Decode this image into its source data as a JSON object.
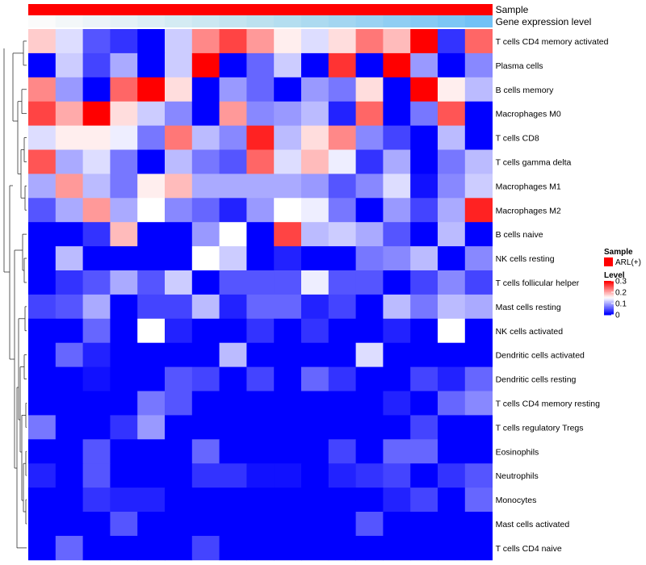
{
  "chart_data": {
    "type": "heatmap",
    "annotation_tracks": [
      "Sample",
      "Gene expression level"
    ],
    "sample_colors": [
      "#ff0000"
    ],
    "expression_colors": [
      "#fbfbfb",
      "#f3f7f9",
      "#ecf4f8",
      "#e4f1f6",
      "#dceef5",
      "#d4ebf3",
      "#cce8f2",
      "#c4e4f0",
      "#bce1ef",
      "#b4def0",
      "#acdaf0",
      "#a3d6f1",
      "#9ad2f2",
      "#90cef3",
      "#86caf4",
      "#7cc6f5",
      "#72c1f6",
      "#67bdf7"
    ],
    "rows": [
      "T cells CD4 memory activated",
      "Plasma cells",
      "B cells memory",
      "Macrophages M0",
      "T cells CD8",
      "T cells gamma delta",
      "Macrophages M1",
      "Macrophages M2",
      "B cells naive",
      "NK cells resting",
      "T cells follicular helper",
      "Mast cells resting",
      "NK cells activated",
      "Dendritic cells activated",
      "Dendritic cells resting",
      "T cells CD4 memory resting",
      "T cells regulatory  Tregs",
      "Eosinophils",
      "Neutrophils",
      "Monocytes",
      "Mast cells activated",
      "T cells CD4 naive"
    ],
    "values": [
      [
        0.18,
        0.13,
        0.05,
        0.03,
        0.0,
        0.12,
        0.22,
        0.26,
        0.21,
        0.16,
        0.13,
        0.17,
        0.23,
        0.19,
        0.3,
        0.03,
        0.24
      ],
      [
        0.0,
        0.12,
        0.04,
        0.1,
        0.0,
        0.12,
        0.3,
        0.0,
        0.06,
        0.12,
        0.0,
        0.27,
        0.0,
        0.3,
        0.09,
        0.0,
        0.08
      ],
      [
        0.22,
        0.09,
        0.0,
        0.24,
        0.3,
        0.17,
        0.0,
        0.09,
        0.06,
        0.0,
        0.09,
        0.07,
        0.17,
        0.0,
        0.3,
        0.16,
        0.11
      ],
      [
        0.26,
        0.2,
        0.3,
        0.17,
        0.12,
        0.08,
        0.0,
        0.21,
        0.08,
        0.09,
        0.11,
        0.02,
        0.24,
        0.0,
        0.07,
        0.25,
        0.0
      ],
      [
        0.13,
        0.16,
        0.16,
        0.14,
        0.07,
        0.23,
        0.11,
        0.08,
        0.28,
        0.11,
        0.17,
        0.22,
        0.08,
        0.04,
        0.0,
        0.11,
        0.0
      ],
      [
        0.25,
        0.1,
        0.13,
        0.07,
        0.0,
        0.11,
        0.07,
        0.05,
        0.24,
        0.13,
        0.19,
        0.14,
        0.03,
        0.1,
        0.0,
        0.07,
        0.11
      ],
      [
        0.1,
        0.21,
        0.11,
        0.07,
        0.16,
        0.19,
        0.1,
        0.1,
        0.1,
        0.1,
        0.09,
        0.05,
        0.08,
        0.13,
        0.01,
        0.08,
        0.12
      ],
      [
        0.05,
        0.1,
        0.21,
        0.1,
        0.15,
        0.08,
        0.06,
        0.02,
        0.09,
        0.15,
        0.14,
        0.07,
        0.0,
        0.09,
        0.04,
        0.1,
        0.28
      ],
      [
        0.0,
        0.0,
        0.03,
        0.19,
        0.0,
        0.0,
        0.09,
        0.15,
        0.0,
        0.26,
        0.11,
        0.12,
        0.1,
        0.05,
        0.0,
        0.11,
        0.0
      ],
      [
        0.0,
        0.11,
        0.0,
        0.0,
        0.0,
        0.0,
        0.15,
        0.12,
        0.0,
        0.02,
        0.0,
        0.0,
        0.07,
        0.08,
        0.11,
        0.0,
        0.08
      ],
      [
        0.0,
        0.03,
        0.05,
        0.1,
        0.05,
        0.12,
        0.0,
        0.05,
        0.05,
        0.05,
        0.14,
        0.05,
        0.05,
        0.0,
        0.04,
        0.08,
        0.04
      ],
      [
        0.04,
        0.05,
        0.1,
        0.0,
        0.04,
        0.04,
        0.11,
        0.02,
        0.06,
        0.06,
        0.02,
        0.04,
        0.0,
        0.11,
        0.07,
        0.11,
        0.1
      ],
      [
        0.0,
        0.0,
        0.06,
        0.0,
        0.15,
        0.02,
        0.0,
        0.0,
        0.03,
        0.0,
        0.03,
        0.0,
        0.0,
        0.02,
        0.0,
        0.15,
        0.0
      ],
      [
        0.0,
        0.06,
        0.02,
        0.0,
        0.0,
        0.0,
        0.0,
        0.11,
        0.0,
        0.0,
        0.0,
        0.0,
        0.13,
        0.0,
        0.0,
        0.0,
        0.0
      ],
      [
        0.0,
        0.0,
        0.01,
        0.0,
        0.0,
        0.05,
        0.04,
        0.0,
        0.04,
        0.0,
        0.06,
        0.03,
        0.0,
        0.0,
        0.04,
        0.02,
        0.06
      ],
      [
        0.0,
        0.0,
        0.0,
        0.0,
        0.07,
        0.05,
        0.0,
        0.0,
        0.0,
        0.0,
        0.0,
        0.0,
        0.0,
        0.02,
        0.0,
        0.06,
        0.08
      ],
      [
        0.07,
        0.0,
        0.0,
        0.03,
        0.09,
        0.0,
        0.0,
        0.0,
        0.0,
        0.0,
        0.0,
        0.0,
        0.0,
        0.0,
        0.04,
        0.0,
        0.0
      ],
      [
        0.0,
        0.0,
        0.05,
        0.0,
        0.0,
        0.0,
        0.06,
        0.0,
        0.0,
        0.0,
        0.0,
        0.04,
        0.0,
        0.06,
        0.06,
        0.0,
        0.0
      ],
      [
        0.02,
        0.0,
        0.05,
        0.0,
        0.0,
        0.0,
        0.03,
        0.03,
        0.01,
        0.01,
        0.0,
        0.02,
        0.03,
        0.04,
        0.0,
        0.03,
        0.05
      ],
      [
        0.0,
        0.0,
        0.03,
        0.02,
        0.02,
        0.0,
        0.0,
        0.0,
        0.0,
        0.0,
        0.0,
        0.0,
        0.0,
        0.02,
        0.04,
        0.0,
        0.06
      ],
      [
        0.0,
        0.0,
        0.0,
        0.05,
        0.0,
        0.0,
        0.0,
        0.0,
        0.0,
        0.0,
        0.0,
        0.0,
        0.05,
        0.0,
        0.0,
        0.0,
        0.0
      ],
      [
        0.0,
        0.06,
        0.0,
        0.0,
        0.0,
        0.0,
        0.04,
        0.0,
        0.0,
        0.0,
        0.0,
        0.0,
        0.0,
        0.0,
        0.0,
        0.0,
        0.0
      ]
    ],
    "color_scale": {
      "low": "#0000ff",
      "mid": "#ffffff",
      "high": "#ff0000",
      "domain": [
        0,
        0.3
      ],
      "mid_value": 0.15
    },
    "legend": {
      "sample_title": "Sample",
      "sample_entry": "ARL(+)",
      "level_title": "Level",
      "level_ticks": [
        "0.3",
        "0.2",
        "0.1",
        "0"
      ]
    },
    "row_dendrogram": true
  }
}
